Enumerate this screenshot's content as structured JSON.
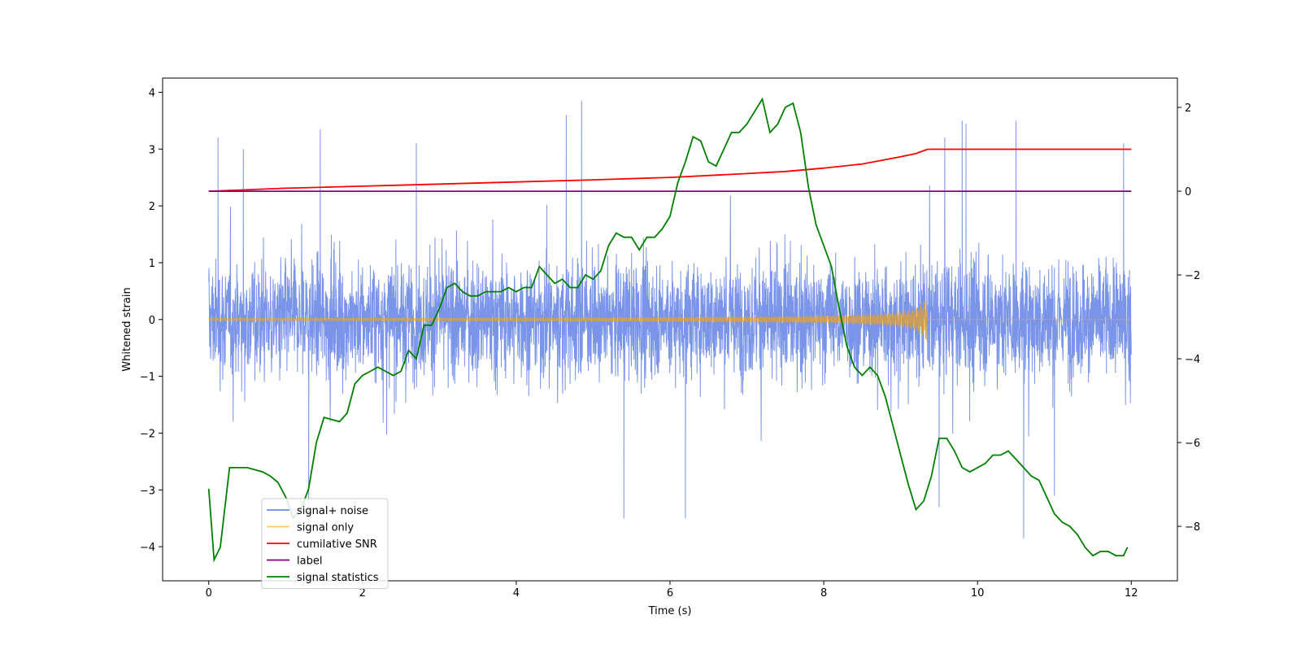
{
  "chart_data": {
    "type": "line",
    "xlabel": "Time (s)",
    "ylabel": "Whitened strain",
    "xlim": [
      -0.6,
      12.6
    ],
    "ylim": [
      -4.6,
      4.25
    ],
    "y2lim": [
      -9.3,
      2.7
    ],
    "xticks": [
      0,
      2,
      4,
      6,
      8,
      10,
      12
    ],
    "yticks": [
      -4,
      -3,
      -2,
      -1,
      0,
      1,
      2,
      3,
      4
    ],
    "y2ticks": [
      -8,
      -6,
      -4,
      -2,
      0,
      2
    ],
    "legend_position": "lower-left",
    "series": [
      {
        "name": "signal+ noise",
        "axis": "left",
        "color": "#6a88e6",
        "kind": "noise",
        "x_range": [
          0,
          12
        ],
        "typical_range": [
          -2.3,
          2.3
        ],
        "peaks": [
          {
            "x": 0.12,
            "y": 3.2
          },
          {
            "x": 0.45,
            "y": 3.0
          },
          {
            "x": 1.45,
            "y": 3.35
          },
          {
            "x": 2.7,
            "y": 3.1
          },
          {
            "x": 4.65,
            "y": 3.6
          },
          {
            "x": 4.85,
            "y": 3.85
          },
          {
            "x": 9.8,
            "y": 3.5
          },
          {
            "x": 9.85,
            "y": 3.45
          },
          {
            "x": 10.5,
            "y": 3.5
          },
          {
            "x": 11.9,
            "y": 3.1
          }
        ],
        "troughs": [
          {
            "x": 1.3,
            "y": -3.6
          },
          {
            "x": 5.4,
            "y": -3.5
          },
          {
            "x": 6.2,
            "y": -3.5
          },
          {
            "x": 9.5,
            "y": -3.3
          },
          {
            "x": 10.6,
            "y": -3.85
          },
          {
            "x": 11.0,
            "y": -3.1
          }
        ]
      },
      {
        "name": "signal only",
        "axis": "left",
        "color": "#ffa500",
        "chirp_end": 9.35,
        "chirp_peak": 0.45,
        "x_range": [
          0,
          12
        ]
      },
      {
        "name": "cumilative SNR",
        "axis": "right",
        "color": "#ff0000",
        "x": [
          0,
          1,
          2,
          3,
          4,
          5,
          6,
          7,
          7.5,
          8,
          8.5,
          9,
          9.2,
          9.35,
          9.36,
          12
        ],
        "y": [
          0,
          0.07,
          0.12,
          0.17,
          0.22,
          0.27,
          0.33,
          0.42,
          0.47,
          0.55,
          0.65,
          0.82,
          0.9,
          1.0,
          1.0,
          1.0
        ]
      },
      {
        "name": "label",
        "axis": "right",
        "color": "#800080",
        "x": [
          0,
          12
        ],
        "y": [
          0,
          0
        ]
      },
      {
        "name": "signal statistics",
        "axis": "right",
        "color": "#008000",
        "x": [
          0,
          0.07,
          0.15,
          0.27,
          0.35,
          0.5,
          0.6,
          0.7,
          0.8,
          0.9,
          1.0,
          1.1,
          1.2,
          1.3,
          1.4,
          1.5,
          1.6,
          1.7,
          1.8,
          1.9,
          2.0,
          2.1,
          2.2,
          2.3,
          2.4,
          2.5,
          2.6,
          2.7,
          2.8,
          2.9,
          3.0,
          3.1,
          3.2,
          3.3,
          3.4,
          3.5,
          3.6,
          3.7,
          3.8,
          3.9,
          4.0,
          4.1,
          4.2,
          4.3,
          4.4,
          4.5,
          4.6,
          4.7,
          4.8,
          4.9,
          5.0,
          5.1,
          5.2,
          5.3,
          5.4,
          5.5,
          5.6,
          5.7,
          5.8,
          5.9,
          6.0,
          6.1,
          6.2,
          6.3,
          6.4,
          6.5,
          6.6,
          6.7,
          6.8,
          6.9,
          7.0,
          7.1,
          7.2,
          7.3,
          7.4,
          7.5,
          7.6,
          7.7,
          7.8,
          7.9,
          8.0,
          8.1,
          8.2,
          8.3,
          8.4,
          8.5,
          8.6,
          8.7,
          8.8,
          8.9,
          9.0,
          9.1,
          9.2,
          9.3,
          9.4,
          9.5,
          9.6,
          9.7,
          9.8,
          9.9,
          10.0,
          10.1,
          10.2,
          10.3,
          10.4,
          10.5,
          10.6,
          10.7,
          10.8,
          10.9,
          11.0,
          11.1,
          11.2,
          11.3,
          11.4,
          11.5,
          11.6,
          11.7,
          11.8,
          11.9,
          11.95
        ],
        "y": [
          -7.1,
          -8.8,
          -8.5,
          -6.6,
          -6.6,
          -6.6,
          -6.65,
          -6.7,
          -6.8,
          -6.95,
          -7.3,
          -7.8,
          -7.6,
          -7.1,
          -6.0,
          -5.4,
          -5.45,
          -5.5,
          -5.3,
          -4.6,
          -4.4,
          -4.3,
          -4.2,
          -4.3,
          -4.4,
          -4.3,
          -3.8,
          -4.0,
          -3.2,
          -3.2,
          -2.8,
          -2.3,
          -2.2,
          -2.4,
          -2.5,
          -2.5,
          -2.4,
          -2.4,
          -2.4,
          -2.3,
          -2.4,
          -2.3,
          -2.3,
          -1.8,
          -2.0,
          -2.2,
          -2.1,
          -2.3,
          -2.3,
          -2.0,
          -2.1,
          -1.9,
          -1.3,
          -1.0,
          -1.1,
          -1.1,
          -1.4,
          -1.1,
          -1.1,
          -0.9,
          -0.6,
          0.2,
          0.7,
          1.3,
          1.2,
          0.7,
          0.6,
          1.0,
          1.4,
          1.4,
          1.6,
          1.9,
          2.2,
          1.4,
          1.6,
          2.0,
          2.1,
          1.4,
          0.1,
          -0.8,
          -1.3,
          -1.8,
          -2.8,
          -3.7,
          -4.2,
          -4.4,
          -4.2,
          -4.4,
          -4.9,
          -5.6,
          -6.3,
          -7.0,
          -7.6,
          -7.4,
          -6.8,
          -5.9,
          -5.9,
          -6.2,
          -6.6,
          -6.7,
          -6.6,
          -6.5,
          -6.3,
          -6.3,
          -6.2,
          -6.4,
          -6.6,
          -6.8,
          -6.9,
          -7.3,
          -7.7,
          -7.9,
          -8.0,
          -8.2,
          -8.5,
          -8.7,
          -8.6,
          -8.6,
          -8.7,
          -8.7,
          -8.5
        ]
      }
    ]
  }
}
